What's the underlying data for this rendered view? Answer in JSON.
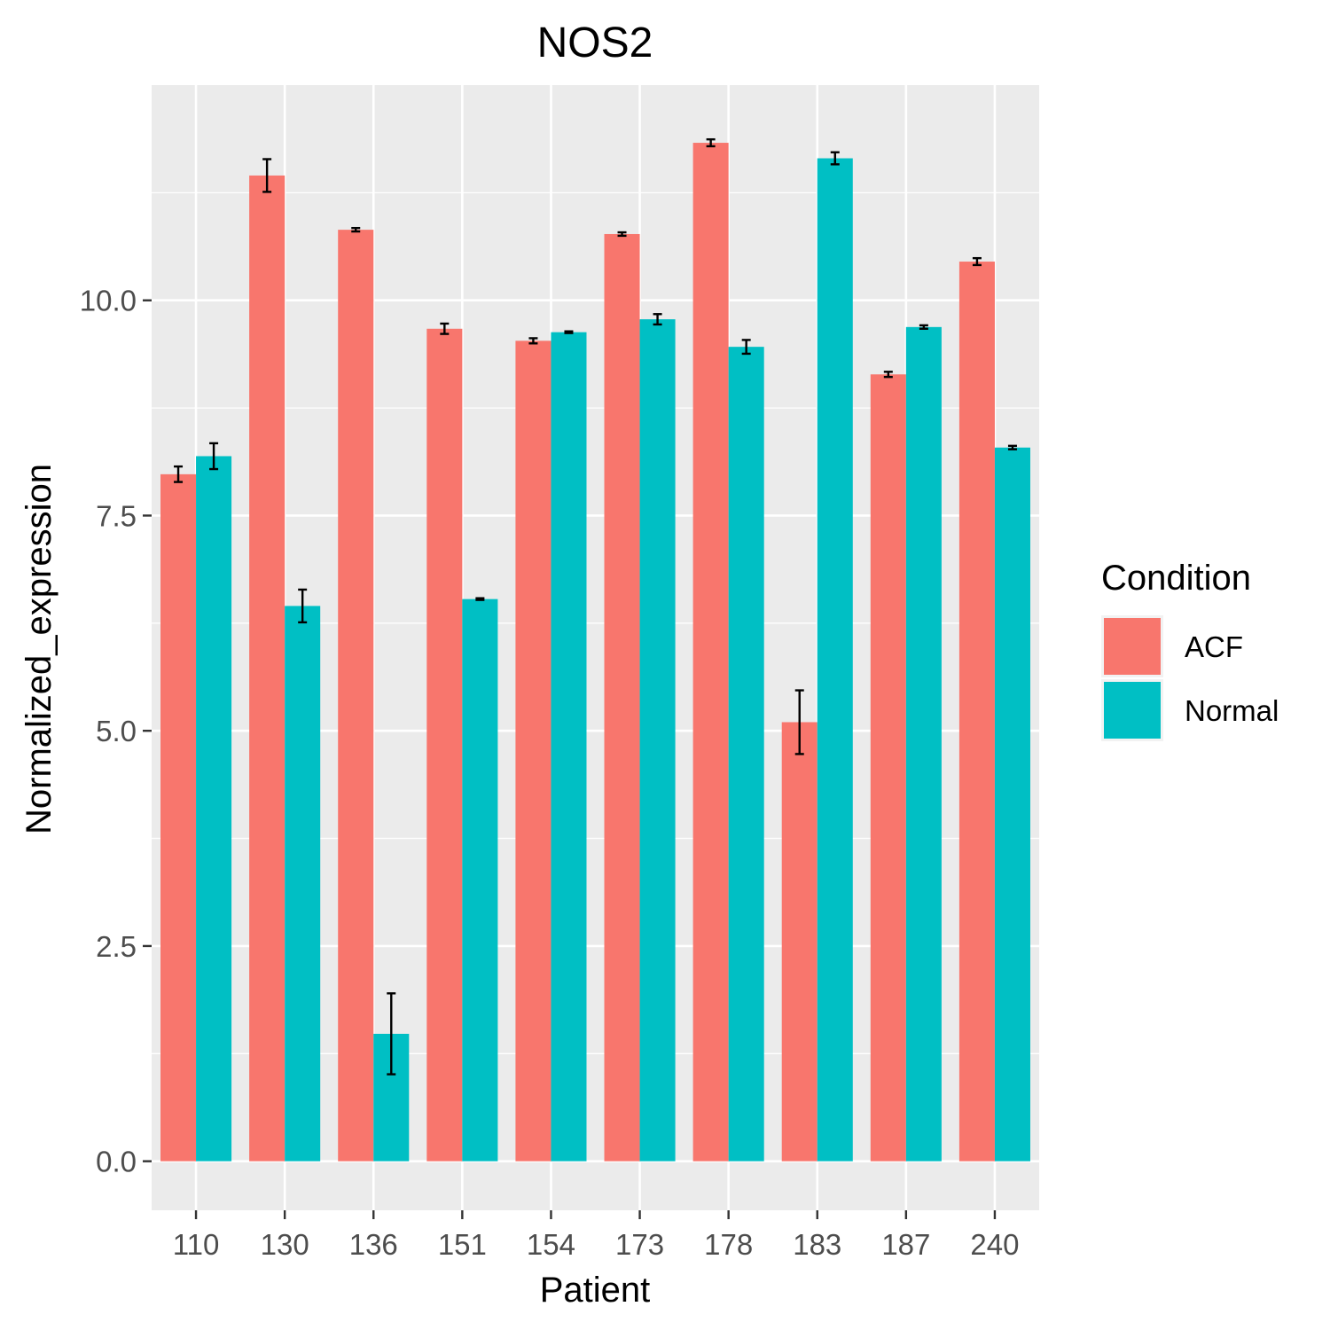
{
  "chart_data": {
    "type": "bar",
    "title": "NOS2",
    "xlabel": "Patient",
    "ylabel": "Normalized_expression",
    "categories": [
      "110",
      "130",
      "136",
      "151",
      "154",
      "173",
      "178",
      "183",
      "187",
      "240"
    ],
    "series": [
      {
        "name": "ACF",
        "color": "#F8766D",
        "values": [
          7.98,
          11.45,
          10.82,
          9.67,
          9.53,
          10.77,
          11.83,
          5.1,
          9.14,
          10.45
        ],
        "errors": [
          0.09,
          0.19,
          0.02,
          0.06,
          0.03,
          0.02,
          0.04,
          0.37,
          0.03,
          0.04
        ]
      },
      {
        "name": "Normal",
        "color": "#00BFC4",
        "values": [
          8.19,
          6.45,
          1.48,
          6.53,
          9.63,
          9.78,
          9.46,
          11.65,
          9.69,
          8.29
        ],
        "errors": [
          0.15,
          0.19,
          0.47,
          0.01,
          0.01,
          0.06,
          0.08,
          0.07,
          0.02,
          0.02
        ]
      }
    ],
    "yticks": [
      "0.0",
      "2.5",
      "5.0",
      "7.5",
      "10.0"
    ],
    "ylim": [
      -0.57,
      12.5
    ],
    "legend": {
      "title": "Condition",
      "position": "right"
    },
    "grid": true,
    "panel_color": "#EBEBEB"
  }
}
